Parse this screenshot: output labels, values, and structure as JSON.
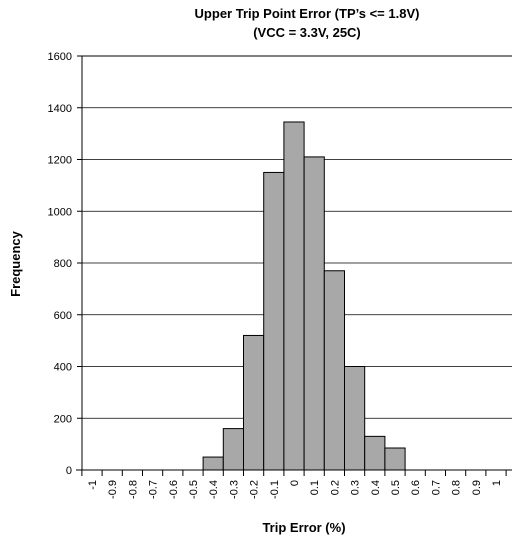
{
  "chart_data": {
    "type": "bar",
    "title_line1": "Upper Trip Point Error (TP’s <= 1.8V)",
    "title_line2": "(VCC = 3.3V, 25C)",
    "xlabel": "Trip Error (%)",
    "ylabel": "Frequency",
    "ylim": [
      0,
      1600
    ],
    "yticks": [
      "0",
      "200",
      "400",
      "600",
      "800",
      "1000",
      "1200",
      "1400",
      "1600"
    ],
    "categories": [
      "-1",
      "-0.9",
      "-0.8",
      "-0.7",
      "-0.6",
      "-0.5",
      "-0.4",
      "-0.3",
      "-0.2",
      "-0.1",
      "0",
      "0.1",
      "0.2",
      "0.3",
      "0.4",
      "0.5",
      "0.6",
      "0.7",
      "0.8",
      "0.9",
      "1"
    ],
    "values": [
      0,
      0,
      0,
      0,
      0,
      0,
      50,
      160,
      520,
      1150,
      1345,
      1210,
      770,
      400,
      130,
      85,
      0,
      0,
      0,
      0,
      0
    ],
    "grid": true,
    "colors": {
      "bar": "#a8a8a8",
      "edge": "#000000"
    }
  }
}
